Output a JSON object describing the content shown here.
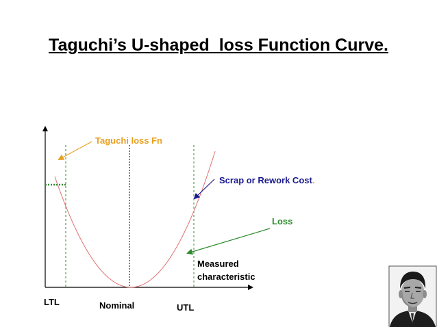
{
  "title": "Taguchi’s U-shaped  loss Function Curve.",
  "labels": {
    "taguchi_loss_fn": "Taguchi loss Fn",
    "scrap_rework_cost": "Scrap or Rework Cost",
    "scrap_rework_period": ".",
    "loss": "Loss",
    "measured_line1": "Measured",
    "measured_line2": "characteristic",
    "ltl": "LTL",
    "nominal": "Nominal",
    "utl": "UTL"
  },
  "colors": {
    "curve": "#e07070",
    "taguchi_label": "#e8a020",
    "scrap_label": "#1a1a8c",
    "loss_label": "#2e8b2e",
    "cost_marker": "#2e8b2e",
    "axis": "#000000"
  },
  "portrait": {
    "icon": "person-photo-icon"
  }
}
